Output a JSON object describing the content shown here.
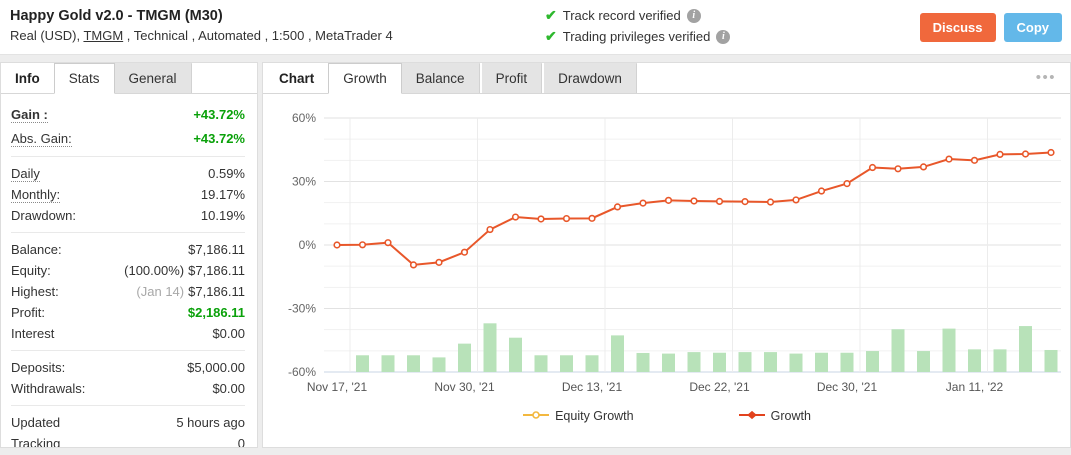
{
  "colors": {
    "positive_green": "#0aa10a",
    "check_green": "#2eb82e",
    "discuss_button": "#f0683c",
    "copy_button": "#63b8e9"
  },
  "header": {
    "title": "Happy Gold v2.0 - TMGM (M30)",
    "subtitle_prefix": "Real (USD), ",
    "subtitle_link": "TMGM",
    "subtitle_rest": " , Technical , Automated , 1:500 , MetaTrader 4",
    "verifications": [
      {
        "label": "Track record verified"
      },
      {
        "label": "Trading privileges verified"
      }
    ],
    "buttons": {
      "discuss": "Discuss",
      "copy": "Copy"
    }
  },
  "sidebar": {
    "tabs": {
      "info": "Info",
      "stats": "Stats",
      "general": "General",
      "active": "Stats"
    },
    "groups": [
      [
        {
          "name": "gain",
          "label": "Gain :",
          "dotted": true,
          "bold": true,
          "big": true,
          "value": "+43.72%",
          "green": true
        },
        {
          "name": "abs-gain",
          "label": "Abs. Gain:",
          "dotted": true,
          "big": true,
          "value": "+43.72%",
          "green": true
        }
      ],
      [
        {
          "name": "daily",
          "label": "Daily",
          "dotted": true,
          "value": "0.59%"
        },
        {
          "name": "monthly",
          "label": "Monthly:",
          "dotted": true,
          "value": "19.17%"
        },
        {
          "name": "drawdown",
          "label": "Drawdown:",
          "value": "10.19%"
        }
      ],
      [
        {
          "name": "balance",
          "label": "Balance:",
          "value": "$7,186.11"
        },
        {
          "name": "equity",
          "label": "Equity:",
          "prefix": "(100.00%)",
          "value": "$7,186.11"
        },
        {
          "name": "highest",
          "label": "Highest:",
          "prefix": "(Jan 14)",
          "prefix_gray": true,
          "value": "$7,186.11"
        },
        {
          "name": "profit",
          "label": "Profit:",
          "value": "$2,186.11",
          "green": true
        },
        {
          "name": "interest",
          "label": "Interest",
          "value": "$0.00"
        }
      ],
      [
        {
          "name": "deposits",
          "label": "Deposits:",
          "value": "$5,000.00"
        },
        {
          "name": "withdrawals",
          "label": "Withdrawals:",
          "value": "$0.00"
        }
      ],
      [
        {
          "name": "updated",
          "label": "Updated",
          "value": "5 hours ago"
        },
        {
          "name": "tracking",
          "label": "Tracking",
          "value": "0"
        }
      ]
    ]
  },
  "chart_panel": {
    "label": "Chart",
    "tabs": {
      "growth": "Growth",
      "balance": "Balance",
      "profit": "Profit",
      "drawdown": "Drawdown",
      "active": "Growth"
    }
  },
  "chart_data": {
    "type": "line",
    "title": "",
    "xlabel": "",
    "ylabel": "",
    "y_axis": {
      "range": [
        -60,
        60
      ],
      "major_ticks": [
        60,
        30,
        0,
        -30,
        -60
      ],
      "tick_labels": [
        "60%",
        "30%",
        "0%",
        "-30%",
        "-60%"
      ],
      "minor_step": 10,
      "grid": true
    },
    "x_axis": {
      "tick_labels": [
        "Nov 17, '21",
        "Nov 30, '21",
        "Dec 13, '21",
        "Dec 22, '21",
        "Dec 30, '21",
        "Jan 11, '22"
      ],
      "tick_indices": [
        0,
        5,
        10,
        15,
        20,
        25
      ]
    },
    "series": [
      {
        "name": "Growth",
        "type": "line",
        "color": "#e8572a",
        "marker": "circle",
        "values": [
          0,
          0.1,
          1.1,
          -9.4,
          -8.2,
          -3.4,
          7.3,
          13.2,
          12.3,
          12.5,
          12.6,
          18.0,
          19.8,
          21.1,
          20.8,
          20.6,
          20.5,
          20.3,
          21.3,
          25.5,
          29.0,
          36.6,
          36.0,
          36.9,
          40.6,
          40.0,
          42.8,
          43.0,
          43.7
        ]
      },
      {
        "name": "Equity Growth",
        "type": "line",
        "color": "#f3b83f",
        "marker": "circle",
        "overlaps_growth_line": true
      }
    ],
    "bars": {
      "color": "#b8e2b9",
      "baseline": -60,
      "start_index": 1,
      "heights_pct": [
        7.9,
        7.9,
        7.9,
        6.9,
        13.4,
        23.0,
        16.2,
        7.9,
        7.9,
        7.9,
        17.3,
        9.0,
        8.7,
        9.4,
        9.1,
        9.4,
        9.4,
        8.7,
        9.1,
        9.1,
        9.9,
        20.2,
        9.9,
        20.5,
        10.7,
        10.7,
        21.7,
        10.4
      ]
    },
    "legend": [
      {
        "label": "Equity Growth",
        "color": "#f3b83f",
        "marker": "circle"
      },
      {
        "label": "Growth",
        "color": "#e2431e",
        "marker": "diamond"
      }
    ],
    "legend_position": "bottom"
  }
}
